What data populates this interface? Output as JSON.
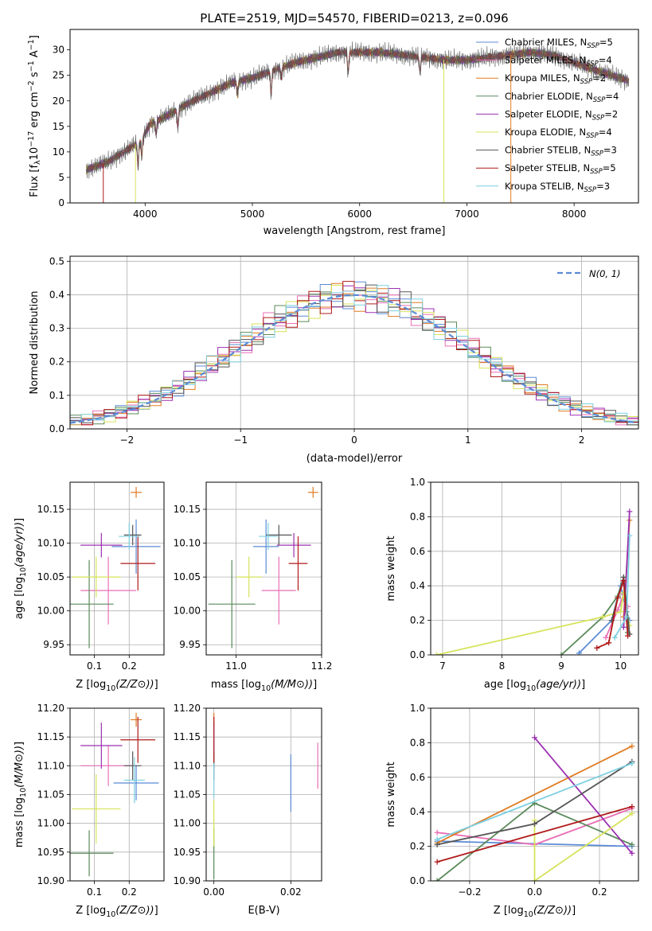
{
  "chart_data": [
    {
      "id": "spectrum",
      "type": "line",
      "title": "PLATE=2519, MJD=54570, FIBERID=0213, z=0.096",
      "xlabel": "wavelength [Angstrom, rest frame]",
      "ylabel_parts": [
        "Flux [f",
        "λ",
        "10",
        "−17",
        " erg cm",
        "−2",
        " s",
        "−1",
        " A",
        "−1",
        "]"
      ],
      "xlim": [
        3300,
        8600
      ],
      "ylim": [
        0,
        34
      ],
      "xticks": [
        4000,
        5000,
        6000,
        7000,
        8000
      ],
      "yticks": [
        0,
        5,
        10,
        15,
        20,
        25,
        30
      ],
      "continuum_x": [
        3450,
        3650,
        3800,
        3950,
        4050,
        4200,
        4400,
        4600,
        4800,
        5000,
        5200,
        5400,
        5600,
        5800,
        6000,
        6200,
        6400,
        6600,
        6800,
        7000,
        7200,
        7400,
        7600,
        7800,
        8000,
        8200,
        8500
      ],
      "continuum_y": [
        6.5,
        8.0,
        10.0,
        12.0,
        15.5,
        17.0,
        19.5,
        21.5,
        23.5,
        24.5,
        26.0,
        27.5,
        28.5,
        29.5,
        29.5,
        29.5,
        29.0,
        28.5,
        28.0,
        28.0,
        28.5,
        29.0,
        29.5,
        29.0,
        27.5,
        26.0,
        24.0
      ],
      "legend": [
        {
          "text": "Chabrier MILES, N",
          "sub": "SSP",
          "suffix": "=5",
          "color": "#5b8bd6"
        },
        {
          "text": "Salpeter MILES, N",
          "sub": "SSP",
          "suffix": "=4",
          "color": "#e96fb6"
        },
        {
          "text": "Kroupa MILES, N",
          "sub": "SSP",
          "suffix": "=2",
          "color": "#e07b22"
        },
        {
          "text": "Chabrier ELODIE, N",
          "sub": "SSP",
          "suffix": "=4",
          "color": "#5a8a5a"
        },
        {
          "text": "Salpeter ELODIE, N",
          "sub": "SSP",
          "suffix": "=2",
          "color": "#9b30b0"
        },
        {
          "text": "Kroupa ELODIE, N",
          "sub": "SSP",
          "suffix": "=4",
          "color": "#d6e35a"
        },
        {
          "text": "Chabrier STELIB, N",
          "sub": "SSP",
          "suffix": "=3",
          "color": "#555555"
        },
        {
          "text": "Salpeter STELIB, N",
          "sub": "SSP",
          "suffix": "=5",
          "color": "#b01a1a"
        },
        {
          "text": "Kroupa STELIB, N",
          "sub": "SSP",
          "suffix": "=3",
          "color": "#7ccfe0"
        }
      ]
    },
    {
      "id": "residuals",
      "type": "line",
      "xlabel": "(data-model)/error",
      "ylabel": "Normed distribution",
      "xlim": [
        -2.5,
        2.5
      ],
      "ylim": [
        0,
        0.515
      ],
      "xticks": [
        -2,
        -1,
        0,
        1,
        2
      ],
      "yticks": [
        0.0,
        0.1,
        0.2,
        0.3,
        0.4,
        0.5
      ],
      "grid": true,
      "legend": "N(0, 1)",
      "legend_placement": "top-right",
      "gauss_color": "#5b8bd6",
      "hist_colors": [
        "#5b8bd6",
        "#e96fb6",
        "#e07b22",
        "#5a8a5a",
        "#9b30b0",
        "#d6e35a",
        "#555555",
        "#b01a1a",
        "#7ccfe0"
      ]
    },
    {
      "id": "age_vs_Z",
      "type": "scatter",
      "xlabel": "Z [log10(Z/Z⊙)]",
      "ylabel": "age  [log10(age/yr)]",
      "xlim": [
        0.03,
        0.3
      ],
      "ylim": [
        9.935,
        10.19
      ],
      "xticks": [
        0.1,
        0.2
      ],
      "yticks": [
        9.95,
        10.0,
        10.05,
        10.1,
        10.15
      ],
      "grid": true,
      "points": [
        {
          "x": 0.22,
          "y": 10.095,
          "xerr": 0.07,
          "yerr": 0.04,
          "color": "#5b8bd6"
        },
        {
          "x": 0.14,
          "y": 10.03,
          "xerr": 0.08,
          "yerr": 0.05,
          "color": "#e96fb6"
        },
        {
          "x": 0.22,
          "y": 10.175,
          "xerr": 0.016,
          "yerr": 0.008,
          "color": "#e07b22"
        },
        {
          "x": 0.085,
          "y": 10.01,
          "xerr": 0.07,
          "yerr": 0.065,
          "color": "#5a8a5a"
        },
        {
          "x": 0.12,
          "y": 10.097,
          "xerr": 0.06,
          "yerr": 0.018,
          "color": "#9b30b0"
        },
        {
          "x": 0.105,
          "y": 10.05,
          "xerr": 0.07,
          "yerr": 0.03,
          "color": "#d6e35a"
        },
        {
          "x": 0.21,
          "y": 10.112,
          "xerr": 0.025,
          "yerr": 0.015,
          "color": "#555555"
        },
        {
          "x": 0.225,
          "y": 10.07,
          "xerr": 0.05,
          "yerr": 0.04,
          "color": "#b01a1a"
        },
        {
          "x": 0.2,
          "y": 10.11,
          "xerr": 0.03,
          "yerr": 0.02,
          "color": "#7ccfe0"
        }
      ]
    },
    {
      "id": "age_vs_mass",
      "type": "scatter",
      "xlabel": "mass [log10(M/M⊙)]",
      "xlim": [
        10.93,
        11.2
      ],
      "ylim": [
        9.935,
        10.19
      ],
      "xticks": [
        11.0,
        11.2
      ],
      "yticks": [
        9.95,
        10.0,
        10.05,
        10.1,
        10.15
      ],
      "grid": true,
      "points": [
        {
          "x": 11.07,
          "y": 10.095,
          "xerr": 0.03,
          "yerr": 0.04,
          "color": "#5b8bd6"
        },
        {
          "x": 11.1,
          "y": 10.03,
          "xerr": 0.04,
          "yerr": 0.05,
          "color": "#e96fb6"
        },
        {
          "x": 11.18,
          "y": 10.175,
          "xerr": 0.012,
          "yerr": 0.008,
          "color": "#e07b22"
        },
        {
          "x": 10.99,
          "y": 10.01,
          "xerr": 0.055,
          "yerr": 0.065,
          "color": "#5a8a5a"
        },
        {
          "x": 11.135,
          "y": 10.097,
          "xerr": 0.04,
          "yerr": 0.018,
          "color": "#9b30b0"
        },
        {
          "x": 11.03,
          "y": 10.05,
          "xerr": 0.03,
          "yerr": 0.03,
          "color": "#d6e35a"
        },
        {
          "x": 11.1,
          "y": 10.112,
          "xerr": 0.03,
          "yerr": 0.015,
          "color": "#555555"
        },
        {
          "x": 11.145,
          "y": 10.07,
          "xerr": 0.022,
          "yerr": 0.04,
          "color": "#b01a1a"
        },
        {
          "x": 11.075,
          "y": 10.11,
          "xerr": 0.022,
          "yerr": 0.02,
          "color": "#7ccfe0"
        }
      ]
    },
    {
      "id": "weight_vs_age",
      "type": "line",
      "xlabel": "age  [log10(age/yr)]",
      "ylabel": "mass weight",
      "xlim": [
        6.8,
        10.3
      ],
      "ylim": [
        0,
        1.0
      ],
      "xticks": [
        7,
        8,
        9,
        10
      ],
      "yticks": [
        0.0,
        0.2,
        0.4,
        0.6,
        0.8,
        1.0
      ],
      "grid": true,
      "series": [
        {
          "color": "#5b8bd6",
          "x": [
            9.3,
            9.85,
            10.0,
            10.1,
            10.15
          ],
          "y": [
            0.01,
            0.2,
            0.4,
            0.25,
            0.2
          ]
        },
        {
          "color": "#e96fb6",
          "x": [
            9.75,
            9.95,
            10.05,
            10.12
          ],
          "y": [
            0.1,
            0.26,
            0.35,
            0.28
          ]
        },
        {
          "color": "#e07b22",
          "x": [
            10.05,
            10.15
          ],
          "y": [
            0.22,
            0.78
          ]
        },
        {
          "color": "#5a8a5a",
          "x": [
            9.0,
            9.7,
            9.95,
            10.05,
            10.12
          ],
          "y": [
            0.0,
            0.22,
            0.34,
            0.45,
            0.13
          ]
        },
        {
          "color": "#9b30b0",
          "x": [
            10.05,
            10.15
          ],
          "y": [
            0.16,
            0.83
          ]
        },
        {
          "color": "#d6e35a",
          "x": [
            6.9,
            9.7,
            10.0,
            10.05,
            10.15
          ],
          "y": [
            0.0,
            0.22,
            0.25,
            0.36,
            0.17
          ]
        },
        {
          "color": "#555555",
          "x": [
            9.85,
            10.05,
            10.15
          ],
          "y": [
            0.2,
            0.45,
            0.12
          ]
        },
        {
          "color": "#b01a1a",
          "x": [
            9.6,
            9.8,
            9.95,
            10.05,
            10.12
          ],
          "y": [
            0.04,
            0.07,
            0.33,
            0.43,
            0.11
          ]
        },
        {
          "color": "#7ccfe0",
          "x": [
            9.9,
            10.1,
            10.15
          ],
          "y": [
            0.1,
            0.22,
            0.69
          ]
        }
      ]
    },
    {
      "id": "mass_vs_Z",
      "type": "scatter",
      "xlabel": "Z [log10(Z/Z⊙)]",
      "ylabel": "mass [log10(M/M⊙)]",
      "xlim": [
        0.03,
        0.3
      ],
      "ylim": [
        10.9,
        11.2
      ],
      "xticks": [
        0.1,
        0.2
      ],
      "yticks": [
        10.9,
        10.95,
        11.0,
        11.05,
        11.1,
        11.15,
        11.2
      ],
      "grid": true,
      "points": [
        {
          "x": 0.22,
          "y": 11.07,
          "xerr": 0.065,
          "yerr": 0.03,
          "color": "#5b8bd6"
        },
        {
          "x": 0.14,
          "y": 11.1,
          "xerr": 0.08,
          "yerr": 0.035,
          "color": "#e96fb6"
        },
        {
          "x": 0.22,
          "y": 11.18,
          "xerr": 0.016,
          "yerr": 0.012,
          "color": "#e07b22"
        },
        {
          "x": 0.085,
          "y": 10.948,
          "xerr": 0.07,
          "yerr": 0.04,
          "color": "#5a8a5a"
        },
        {
          "x": 0.12,
          "y": 11.135,
          "xerr": 0.06,
          "yerr": 0.04,
          "color": "#9b30b0"
        },
        {
          "x": 0.105,
          "y": 11.025,
          "xerr": 0.07,
          "yerr": 0.06,
          "color": "#d6e35a"
        },
        {
          "x": 0.21,
          "y": 11.1,
          "xerr": 0.025,
          "yerr": 0.025,
          "color": "#555555"
        },
        {
          "x": 0.225,
          "y": 11.145,
          "xerr": 0.05,
          "yerr": 0.04,
          "color": "#b01a1a"
        },
        {
          "x": 0.215,
          "y": 11.075,
          "xerr": 0.03,
          "yerr": 0.04,
          "color": "#7ccfe0"
        }
      ]
    },
    {
      "id": "mass_vs_ebv",
      "type": "scatter",
      "xlabel": "E(B-V)",
      "xlim": [
        -0.002,
        0.028
      ],
      "ylim": [
        10.9,
        11.2
      ],
      "xticks": [
        0.0,
        0.02
      ],
      "yticks": [
        10.9,
        10.95,
        11.0,
        11.05,
        11.1,
        11.15,
        11.2
      ],
      "grid": true,
      "points": [
        {
          "x": 0.02,
          "y": 11.07,
          "xerr": 0.0,
          "yerr": 0.05,
          "color": "#5b8bd6"
        },
        {
          "x": 0.027,
          "y": 11.1,
          "xerr": 0.0,
          "yerr": 0.04,
          "color": "#e96fb6"
        },
        {
          "x": 0.0,
          "y": 11.18,
          "xerr": 0.0,
          "yerr": 0.012,
          "color": "#e07b22"
        },
        {
          "x": 0.0,
          "y": 10.948,
          "xerr": 0.0,
          "yerr": 0.045,
          "color": "#5a8a5a"
        },
        {
          "x": 0.0,
          "y": 11.135,
          "xerr": 0.0,
          "yerr": 0.04,
          "color": "#9b30b0"
        },
        {
          "x": 0.0,
          "y": 11.0,
          "xerr": 0.0,
          "yerr": 0.04,
          "color": "#d6e35a"
        },
        {
          "x": 0.0,
          "y": 11.1,
          "xerr": 0.0,
          "yerr": 0.025,
          "color": "#555555"
        },
        {
          "x": 0.0,
          "y": 11.145,
          "xerr": 0.0,
          "yerr": 0.04,
          "color": "#b01a1a"
        },
        {
          "x": 0.0,
          "y": 11.075,
          "xerr": 0.0,
          "yerr": 0.03,
          "color": "#7ccfe0"
        }
      ]
    },
    {
      "id": "weight_vs_Z",
      "type": "line",
      "xlabel": "Z [log10(Z/Z⊙)]",
      "ylabel": "mass weight",
      "xlim": [
        -0.32,
        0.32
      ],
      "ylim": [
        0,
        1.0
      ],
      "xticks": [
        -0.2,
        0.0,
        0.2
      ],
      "yticks": [
        0.0,
        0.2,
        0.4,
        0.6,
        0.8,
        1.0
      ],
      "grid": true,
      "series": [
        {
          "color": "#5b8bd6",
          "x": [
            -0.3,
            0.3
          ],
          "y": [
            0.23,
            0.2
          ]
        },
        {
          "color": "#e96fb6",
          "x": [
            -0.3,
            0.0,
            0.3
          ],
          "y": [
            0.28,
            0.21,
            0.42
          ]
        },
        {
          "color": "#e07b22",
          "x": [
            -0.3,
            0.3
          ],
          "y": [
            0.22,
            0.78
          ]
        },
        {
          "color": "#5a8a5a",
          "x": [
            -0.3,
            0.0,
            0.3
          ],
          "y": [
            0.0,
            0.45,
            0.21
          ]
        },
        {
          "color": "#9b30b0",
          "x": [
            0.0,
            0.3
          ],
          "y": [
            0.83,
            0.16
          ]
        },
        {
          "color": "#d6e35a",
          "x": [
            0.0,
            0.0,
            0.3
          ],
          "y": [
            0.35,
            0.0,
            0.39
          ]
        },
        {
          "color": "#555555",
          "x": [
            -0.3,
            0.0,
            0.3
          ],
          "y": [
            0.21,
            0.33,
            0.69
          ]
        },
        {
          "color": "#b01a1a",
          "x": [
            -0.3,
            0.3
          ],
          "y": [
            0.11,
            0.43
          ]
        },
        {
          "color": "#7ccfe0",
          "x": [
            -0.3,
            0.3
          ],
          "y": [
            0.24,
            0.68
          ]
        }
      ]
    }
  ]
}
